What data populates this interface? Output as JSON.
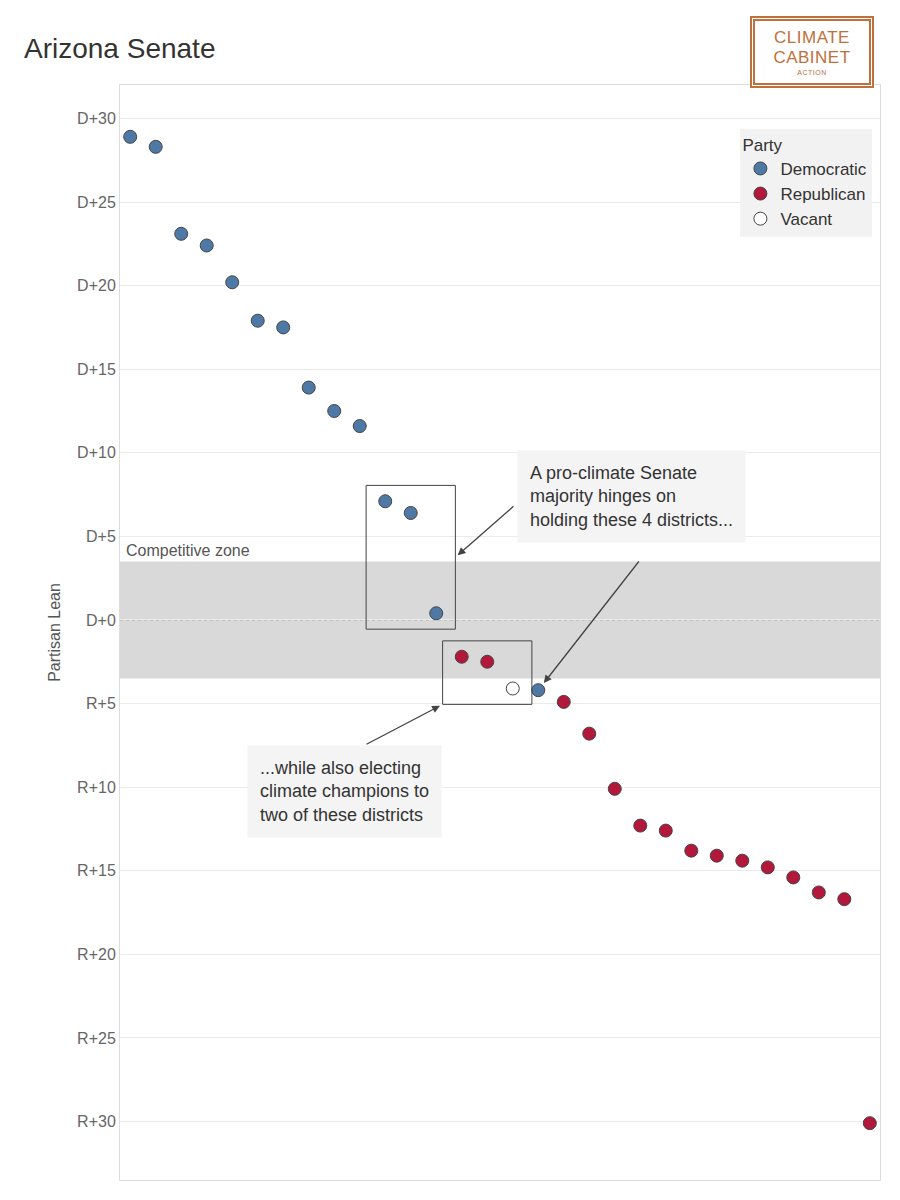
{
  "chart_data": {
    "type": "scatter",
    "title": "Arizona Senate",
    "y_label": "Partisan Lean",
    "logo": [
      "CLIMATE",
      "CABINET",
      "ACTION"
    ],
    "legend": "top right",
    "legend_title": "Party",
    "grid": true,
    "tick_labels": "y",
    "marker": "circle",
    "xlim": [
      0.6,
      30.4
    ],
    "ylim": [
      -33.5,
      32
    ],
    "yticks": [
      {
        "value": 30,
        "label": "D+30"
      },
      {
        "value": 25,
        "label": "D+25"
      },
      {
        "value": 20,
        "label": "D+20"
      },
      {
        "value": 15,
        "label": "D+15"
      },
      {
        "value": 10,
        "label": "D+10"
      },
      {
        "value": 5,
        "label": "D+5"
      },
      {
        "value": 0,
        "label": "D+0"
      },
      {
        "value": -5,
        "label": "R+5"
      },
      {
        "value": -10,
        "label": "R+10"
      },
      {
        "value": -15,
        "label": "R+15"
      },
      {
        "value": -20,
        "label": "R+20"
      },
      {
        "value": -25,
        "label": "R+25"
      },
      {
        "value": -30,
        "label": "R+30"
      }
    ],
    "shaded_zone": {
      "label": "Competitive zone",
      "from": -3.5,
      "to": 3.5
    },
    "series": [
      {
        "name": "Democratic",
        "color": "#4e79a7",
        "x": [
          1,
          2,
          3,
          4,
          5,
          6,
          7,
          8,
          9,
          10,
          11,
          12,
          13,
          17
        ],
        "values": [
          28.9,
          28.3,
          23.1,
          22.4,
          20.2,
          17.9,
          17.5,
          13.9,
          12.5,
          11.6,
          7.1,
          6.4,
          0.4,
          -4.2
        ]
      },
      {
        "name": "Republican",
        "color": "#b3173a",
        "x": [
          14,
          15,
          18,
          19,
          20,
          21,
          22,
          23,
          24,
          25,
          26,
          27,
          28,
          29,
          30
        ],
        "values": [
          -2.2,
          -2.5,
          -4.9,
          -6.8,
          -10.1,
          -12.3,
          -12.6,
          -13.8,
          -14.1,
          -14.4,
          -14.8,
          -15.4,
          -16.3,
          -16.7,
          -30.1
        ]
      },
      {
        "name": "Vacant",
        "color": "#ffffff",
        "x": [
          16
        ],
        "values": [
          -4.1
        ]
      }
    ],
    "annotations": [
      {
        "text": [
          "A pro-climate Senate",
          "majority hinges on",
          "holding these 4 districts..."
        ],
        "districts": [
          11,
          12,
          13,
          17
        ]
      },
      {
        "text": [
          "...while also electing",
          "climate champions to",
          "two of these districts"
        ],
        "districts": [
          14,
          15,
          16
        ]
      }
    ]
  }
}
